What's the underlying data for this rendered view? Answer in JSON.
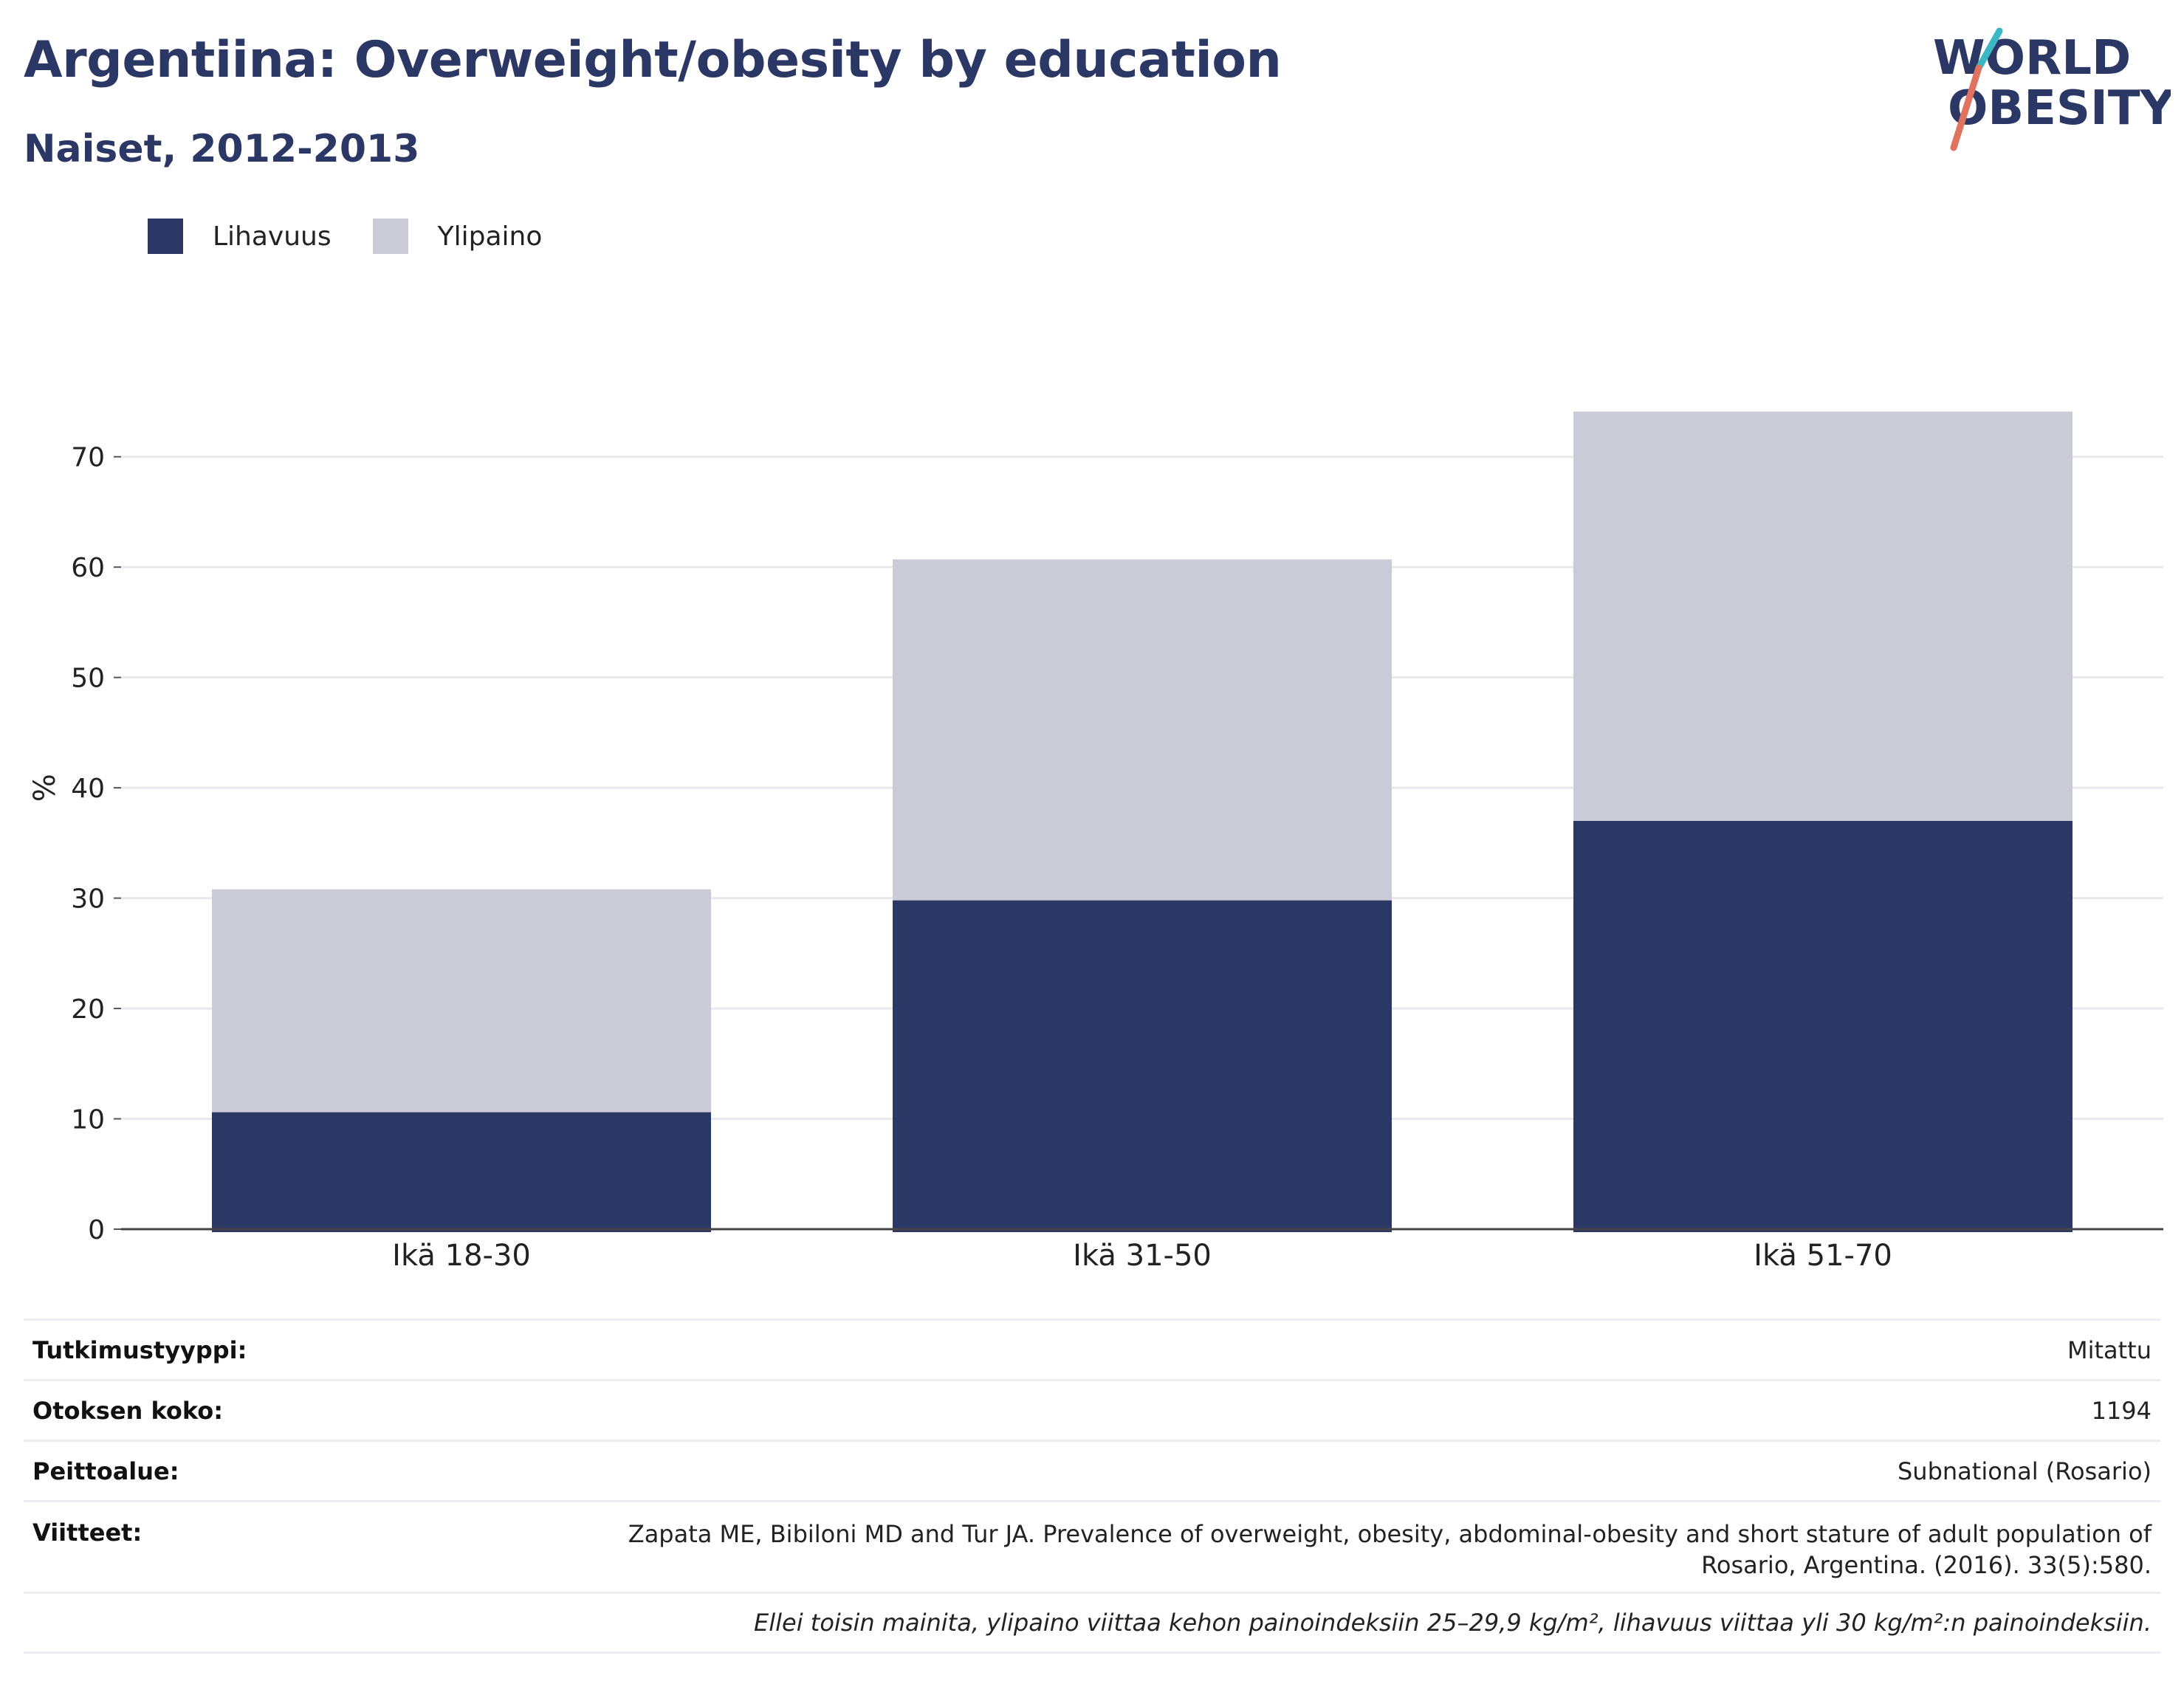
{
  "header": {
    "title": "Argentiina: Overweight/obesity by education",
    "subtitle": "Naiset, 2012-2013"
  },
  "logo": {
    "line1": "WORLD",
    "line2": "OBESITY"
  },
  "legend": [
    {
      "label": "Lihavuus",
      "color": "#2b3764"
    },
    {
      "label": "Ylipaino",
      "color": "#cacbd6"
    }
  ],
  "chart_data": {
    "type": "bar",
    "stacked": true,
    "categories": [
      "Ikä 18-30",
      "Ikä 31-50",
      "Ikä 51-70"
    ],
    "series": [
      {
        "name": "Lihavuus",
        "color": "#2b3764",
        "values": [
          10.6,
          29.8,
          37.0
        ]
      },
      {
        "name": "Ylipaino",
        "color": "#cacbd6",
        "values": [
          20.2,
          30.9,
          37.1
        ]
      }
    ],
    "ylabel": "%",
    "ylim": [
      0,
      75
    ],
    "yticks": [
      0,
      10,
      20,
      30,
      40,
      50,
      60,
      70
    ],
    "grid": true,
    "legend_position": "top-left"
  },
  "meta": {
    "study_type_label": "Tutkimustyyppi:",
    "study_type_value": "Mitattu",
    "sample_size_label": "Otoksen koko:",
    "sample_size_value": "1194",
    "coverage_label": "Peittoalue:",
    "coverage_value": "Subnational (Rosario)",
    "references_label": "Viitteet:",
    "references_line1": "Zapata ME, Bibiloni MD and Tur JA. Prevalence of overweight, obesity, abdominal-obesity and short stature of adult population of",
    "references_line2": "Rosario, Argentina. (2016). 33(5):580.",
    "note": "Ellei toisin mainita, ylipaino viittaa kehon painoindeksiin 25–29,9 kg/m², lihavuus viittaa yli 30 kg/m²:n painoindeksiin."
  }
}
